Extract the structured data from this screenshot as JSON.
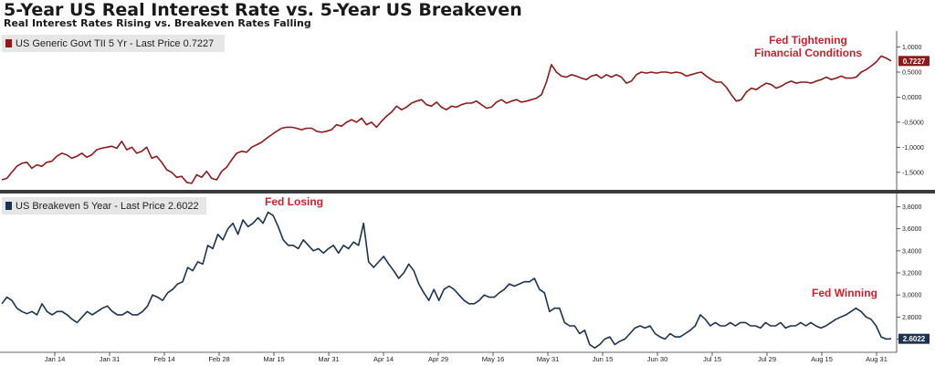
{
  "title": "5-Year US Real Interest Rate vs. 5-Year US Breakeven",
  "subtitle": "Real Interest Rates Rising vs. Breakeven Rates Falling",
  "colors": {
    "real": "#8b1a1a",
    "breakeven": "#1b3350",
    "annot_red": "#cc1f2e",
    "annot_blue": "#1b3350"
  },
  "chart_data": [
    {
      "type": "line",
      "legend": "US Generic Govt TII 5 Yr - Last Price 0.7227",
      "last_value_label": "0.7227",
      "y_ticks": [
        "1,0000",
        "0,5000",
        "0,0000",
        "-0,5000",
        "-1,0000",
        "-1,5000"
      ],
      "y_tick_values": [
        1.0,
        0.5,
        0.0,
        -0.5,
        -1.0,
        -1.5
      ],
      "ylim": [
        -1.85,
        1.32
      ],
      "annotations": [
        {
          "text_lines": [
            "Fed Tightening",
            "Financial Conditions"
          ],
          "color": "annot_red"
        }
      ],
      "series": [
        {
          "values": [
            -1.65,
            -1.62,
            -1.5,
            -1.38,
            -1.32,
            -1.3,
            -1.42,
            -1.35,
            -1.38,
            -1.3,
            -1.28,
            -1.18,
            -1.12,
            -1.15,
            -1.22,
            -1.18,
            -1.12,
            -1.2,
            -1.15,
            -1.05,
            -1.02,
            -1.0,
            -0.98,
            -1.02,
            -0.88,
            -1.05,
            -1.0,
            -1.12,
            -1.08,
            -1.0,
            -1.22,
            -1.18,
            -1.3,
            -1.45,
            -1.5,
            -1.6,
            -1.58,
            -1.7,
            -1.72,
            -1.55,
            -1.6,
            -1.48,
            -1.62,
            -1.65,
            -1.48,
            -1.4,
            -1.25,
            -1.12,
            -1.08,
            -1.1,
            -1.0,
            -0.95,
            -0.9,
            -0.82,
            -0.75,
            -0.68,
            -0.62,
            -0.6,
            -0.6,
            -0.62,
            -0.65,
            -0.62,
            -0.62,
            -0.68,
            -0.7,
            -0.68,
            -0.65,
            -0.55,
            -0.58,
            -0.5,
            -0.45,
            -0.5,
            -0.42,
            -0.55,
            -0.5,
            -0.6,
            -0.48,
            -0.38,
            -0.3,
            -0.18,
            -0.25,
            -0.2,
            -0.12,
            -0.08,
            -0.05,
            -0.15,
            -0.18,
            -0.1,
            -0.2,
            -0.25,
            -0.18,
            -0.2,
            -0.15,
            -0.12,
            -0.12,
            -0.08,
            -0.15,
            -0.22,
            -0.2,
            -0.1,
            -0.05,
            -0.12,
            -0.08,
            -0.05,
            -0.1,
            -0.08,
            -0.05,
            -0.02,
            0.05,
            0.3,
            0.65,
            0.5,
            0.42,
            0.4,
            0.45,
            0.42,
            0.38,
            0.35,
            0.42,
            0.45,
            0.38,
            0.45,
            0.4,
            0.45,
            0.4,
            0.28,
            0.32,
            0.45,
            0.5,
            0.48,
            0.5,
            0.48,
            0.5,
            0.5,
            0.48,
            0.5,
            0.48,
            0.42,
            0.45,
            0.48,
            0.5,
            0.42,
            0.35,
            0.3,
            0.3,
            0.2,
            0.05,
            -0.08,
            -0.05,
            0.1,
            0.18,
            0.15,
            0.22,
            0.28,
            0.25,
            0.18,
            0.22,
            0.28,
            0.32,
            0.28,
            0.3,
            0.3,
            0.28,
            0.32,
            0.35,
            0.4,
            0.35,
            0.38,
            0.42,
            0.38,
            0.38,
            0.4,
            0.5,
            0.55,
            0.62,
            0.7,
            0.82,
            0.78,
            0.7227
          ]
        }
      ]
    },
    {
      "type": "line",
      "legend": "US Breakeven 5 Year - Last Price 2.6022",
      "last_value_label": "2.6022",
      "y_ticks": [
        "3,8000",
        "3,6000",
        "3,4000",
        "3,2000",
        "3,0000",
        "2,8000",
        "2,6000"
      ],
      "y_tick_values": [
        3.8,
        3.6,
        3.4,
        3.2,
        3.0,
        2.8,
        2.6
      ],
      "ylim": [
        2.48,
        3.92
      ],
      "x_ticks": [
        "Jan 14",
        "Jan 31",
        "Feb 14",
        "Feb 28",
        "Mar 15",
        "Mar 31",
        "Apr 14",
        "Apr 29",
        "May 16",
        "May 31",
        "Jun 15",
        "Jun 30",
        "Jul 15",
        "Jul 29",
        "Aug 15",
        "Aug 31"
      ],
      "annotations": [
        {
          "text_lines": [
            "Fed Losing"
          ],
          "color": "annot_red"
        },
        {
          "text_lines": [
            "Fed Winning"
          ],
          "color": "annot_red"
        }
      ],
      "series": [
        {
          "values": [
            2.92,
            2.98,
            2.95,
            2.88,
            2.85,
            2.83,
            2.85,
            2.82,
            2.92,
            2.85,
            2.82,
            2.85,
            2.85,
            2.82,
            2.78,
            2.75,
            2.8,
            2.85,
            2.82,
            2.85,
            2.88,
            2.9,
            2.85,
            2.82,
            2.82,
            2.85,
            2.82,
            2.82,
            2.85,
            2.9,
            3.0,
            2.98,
            2.95,
            3.02,
            3.05,
            3.1,
            3.12,
            3.25,
            3.22,
            3.3,
            3.28,
            3.45,
            3.42,
            3.55,
            3.5,
            3.6,
            3.65,
            3.55,
            3.68,
            3.62,
            3.65,
            3.7,
            3.65,
            3.75,
            3.72,
            3.62,
            3.5,
            3.45,
            3.45,
            3.42,
            3.5,
            3.45,
            3.4,
            3.42,
            3.38,
            3.42,
            3.45,
            3.38,
            3.45,
            3.42,
            3.48,
            3.45,
            3.65,
            3.3,
            3.25,
            3.3,
            3.35,
            3.28,
            3.22,
            3.15,
            3.2,
            3.28,
            3.22,
            3.1,
            3.02,
            2.95,
            3.05,
            2.95,
            3.05,
            3.08,
            3.05,
            3.0,
            2.95,
            2.92,
            2.92,
            2.95,
            3.0,
            2.98,
            2.98,
            3.02,
            3.05,
            3.1,
            3.08,
            3.1,
            3.12,
            3.12,
            3.15,
            3.05,
            3.02,
            2.85,
            2.88,
            2.88,
            2.75,
            2.72,
            2.72,
            2.65,
            2.68,
            2.55,
            2.52,
            2.55,
            2.6,
            2.62,
            2.55,
            2.58,
            2.6,
            2.65,
            2.7,
            2.72,
            2.7,
            2.72,
            2.65,
            2.62,
            2.6,
            2.65,
            2.62,
            2.62,
            2.65,
            2.68,
            2.72,
            2.82,
            2.78,
            2.72,
            2.75,
            2.72,
            2.72,
            2.75,
            2.72,
            2.75,
            2.75,
            2.72,
            2.72,
            2.7,
            2.75,
            2.72,
            2.72,
            2.75,
            2.7,
            2.72,
            2.72,
            2.75,
            2.72,
            2.75,
            2.72,
            2.7,
            2.72,
            2.75,
            2.78,
            2.8,
            2.82,
            2.85,
            2.88,
            2.85,
            2.8,
            2.78,
            2.72,
            2.62,
            2.6,
            2.6022
          ]
        }
      ]
    }
  ]
}
